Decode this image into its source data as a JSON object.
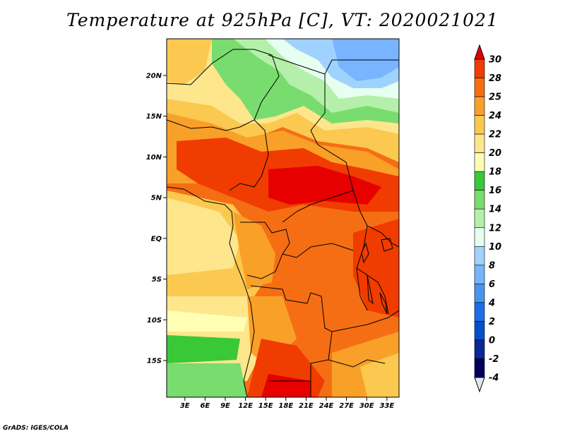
{
  "title": "Temperature at 925hPa [C], VT: 2020021021",
  "credit": "GrADS: IGES/COLA",
  "map": {
    "lat_labels": [
      "20N",
      "15N",
      "10N",
      "5N",
      "EQ",
      "5S",
      "10S",
      "15S"
    ],
    "lat_values": [
      20,
      15,
      10,
      5,
      0,
      -5,
      -10,
      -15
    ],
    "lon_labels": [
      "3E",
      "6E",
      "9E",
      "12E",
      "15E",
      "18E",
      "21E",
      "24E",
      "27E",
      "30E",
      "33E"
    ],
    "lon_values": [
      3,
      6,
      9,
      12,
      15,
      18,
      21,
      24,
      27,
      30,
      33
    ],
    "lat_range": [
      -19.5,
      24.5
    ],
    "lon_range": [
      0.3,
      34.8
    ]
  },
  "colorbar": {
    "levels": [
      "30",
      "28",
      "25",
      "24",
      "22",
      "20",
      "18",
      "16",
      "14",
      "12",
      "10",
      "8",
      "6",
      "4",
      "2",
      "0",
      "-2",
      "-4"
    ],
    "colors": [
      "#e60000",
      "#f03c00",
      "#f56e14",
      "#f9a028",
      "#fbc850",
      "#fde68c",
      "#fefeb4",
      "#38c838",
      "#78dc6e",
      "#b4f0aa",
      "#e6fff0",
      "#a0d2ff",
      "#78b4ff",
      "#4696f0",
      "#1e6ee6",
      "#0050c8",
      "#0a2896",
      "#00005a"
    ],
    "top_color": "#e60000",
    "bottom_color": "#e6e6f0"
  }
}
